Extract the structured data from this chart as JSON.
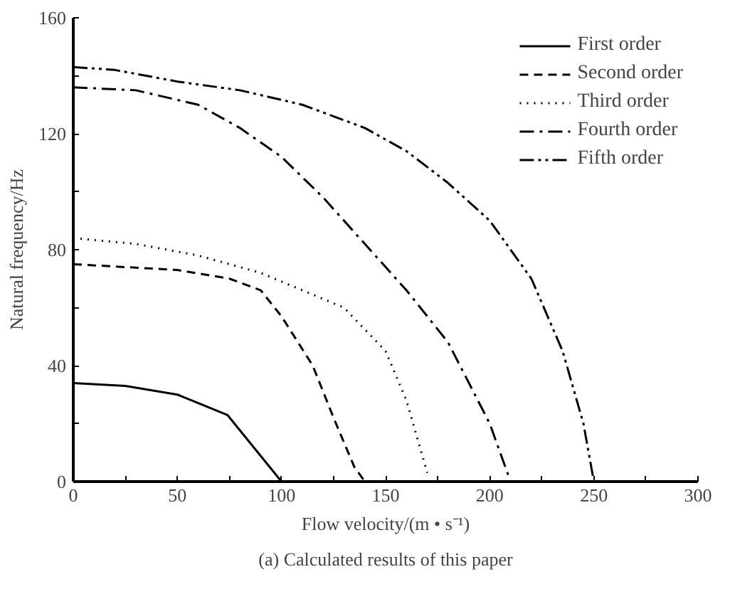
{
  "chart_data": {
    "type": "line",
    "title": "(a) Calculated results of this paper",
    "xlabel": "Flow velocity/(m • s⁻¹)",
    "ylabel": "Natural frequency/Hz",
    "xlim": [
      0,
      300
    ],
    "ylim": [
      0,
      160
    ],
    "xticks": [
      0,
      {
        "value": 25,
        "label": null
      },
      50,
      {
        "value": 75,
        "label": null
      },
      100,
      {
        "value": 125,
        "label": null
      },
      150,
      {
        "value": 175,
        "label": null
      },
      200,
      {
        "value": 225,
        "label": null
      },
      250,
      {
        "value": 275,
        "label": null
      },
      300
    ],
    "yticks": [
      0,
      {
        "value": 20,
        "label": null
      },
      40,
      {
        "value": 60,
        "label": null
      },
      80,
      {
        "value": 100,
        "label": null
      },
      120,
      {
        "value": 140,
        "label": null
      },
      160
    ],
    "grid": false,
    "legend": "top right",
    "series": [
      {
        "name": "First order",
        "color": "#000000",
        "line_style": "solid",
        "x": [
          0,
          25,
          50,
          74,
          100
        ],
        "values": [
          34,
          33,
          30,
          23,
          0
        ]
      },
      {
        "name": "Second order",
        "color": "#000000",
        "line_style": "dashed",
        "x": [
          0,
          50,
          75,
          90,
          100,
          115,
          125,
          135,
          140
        ],
        "values": [
          75,
          73,
          70,
          66,
          57,
          40,
          22,
          5,
          0
        ]
      },
      {
        "name": "Third order",
        "color": "#000000",
        "line_style": "dotted",
        "x": [
          0,
          30,
          60,
          90,
          110,
          130,
          150,
          160,
          170
        ],
        "values": [
          84,
          82,
          78,
          72,
          66,
          60,
          45,
          28,
          3
        ]
      },
      {
        "name": "Fourth order",
        "color": "#000000",
        "line_style": "dashdot",
        "x": [
          0,
          30,
          60,
          80,
          100,
          120,
          140,
          160,
          180,
          200,
          210
        ],
        "values": [
          136,
          135,
          130,
          122,
          112,
          98,
          82,
          66,
          48,
          20,
          0
        ]
      },
      {
        "name": "Fifth order",
        "color": "#000000",
        "line_style": "dashdotdot",
        "x": [
          0,
          20,
          50,
          80,
          110,
          140,
          160,
          180,
          200,
          220,
          235,
          245,
          250
        ],
        "values": [
          143,
          142,
          138,
          135,
          130,
          122,
          114,
          103,
          90,
          70,
          45,
          20,
          0
        ]
      }
    ]
  }
}
